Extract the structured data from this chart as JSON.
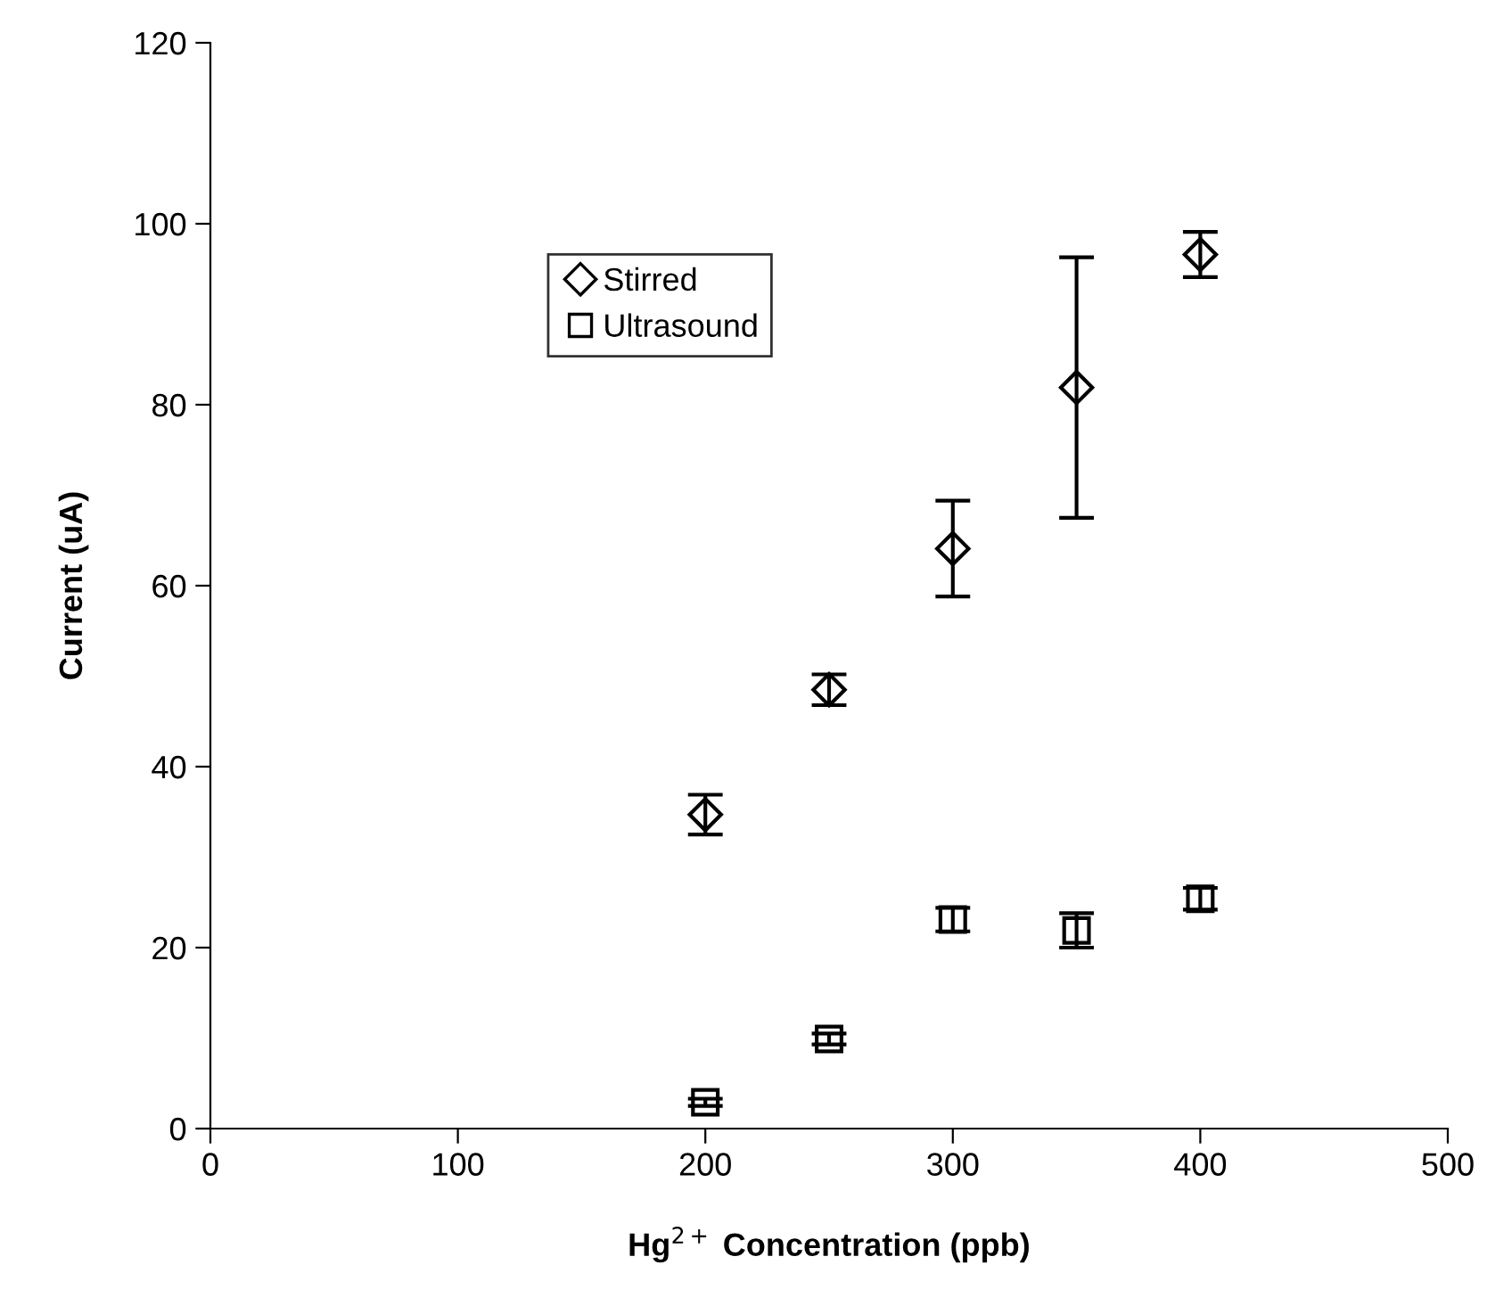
{
  "chart_data": {
    "type": "scatter",
    "xlabel": "Hg$^{2+}$ Concentration (ppb)",
    "ylabel": "Current (uA)",
    "x": [
      200,
      250,
      300,
      350,
      400
    ],
    "series": [
      {
        "name": "Stirred",
        "color": "#000000",
        "marker": "diamond",
        "values": [
          34.7,
          48.5,
          64.1,
          81.9,
          96.6
        ],
        "errors": [
          2.2,
          1.7,
          5.3,
          14.4,
          2.5
        ]
      },
      {
        "name": "Ultrasound",
        "color": "#000000",
        "marker": "square",
        "values": [
          2.9,
          9.9,
          23.1,
          21.9,
          25.4
        ],
        "errors": [
          0.4,
          0.6,
          1.3,
          1.9,
          1.2
        ]
      }
    ],
    "xlim": [
      0,
      500
    ],
    "xticks": [
      0,
      100,
      200,
      300,
      400,
      500
    ],
    "ylim": [
      0,
      120
    ],
    "yticks": [
      0,
      20,
      40,
      60,
      80,
      100,
      120
    ],
    "grid": false,
    "legend": "top left"
  }
}
